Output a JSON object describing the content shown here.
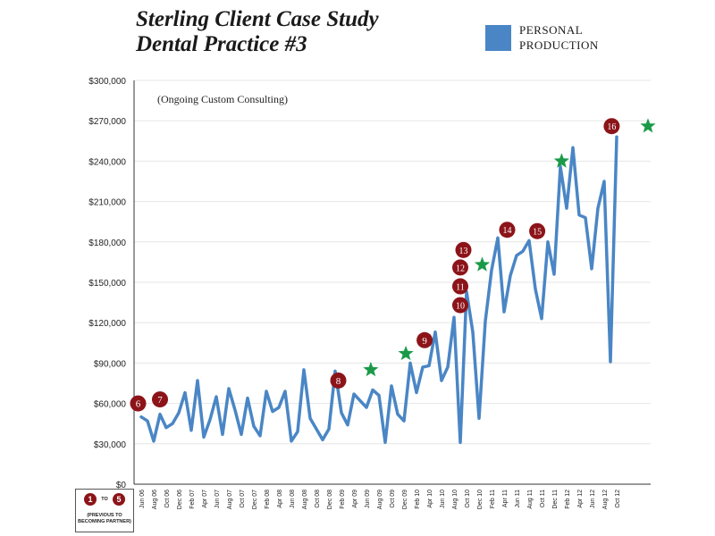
{
  "title_line1": "Sterling Client Case Study",
  "title_line2": "Dental Practice #3",
  "legend": {
    "label": "PERSONAL PRODUCTION",
    "color": "#4a86c5"
  },
  "annotation": "(Ongoing Custom Consulting)",
  "note": {
    "from": "1",
    "to_word": "TO",
    "to": "5",
    "caption_line1": "(PREVIOUS TO",
    "caption_line2": "BECOMING PARTNER)"
  },
  "colors": {
    "line": "#4a86c5",
    "badge": "#8c1419",
    "star": "#1a9a48",
    "axis": "#333333"
  },
  "chart_data": {
    "type": "line",
    "ylim": [
      0,
      300000
    ],
    "y_ticks": [
      "$0",
      "$30,000",
      "$60,000",
      "$90,000",
      "$120,000",
      "$150,000",
      "$180,000",
      "$210,000",
      "$240,000",
      "$270,000",
      "$300,000"
    ],
    "x_tick_labels": [
      "Jun 06",
      "Aug 06",
      "Oct 06",
      "Dec 06",
      "Feb 07",
      "Apr 07",
      "Jun 07",
      "Aug 07",
      "Oct 07",
      "Dec 07",
      "Feb 08",
      "Apr 08",
      "Jun 08",
      "Aug 08",
      "Oct 08",
      "Dec 08",
      "Feb 09",
      "Apr 09",
      "Jun 09",
      "Aug 09",
      "Oct 09",
      "Dec 09",
      "Feb 10",
      "Apr 10",
      "Jun 10",
      "Aug 10",
      "Oct 10",
      "Dec 10",
      "Feb 11",
      "Apr 11",
      "Jun 11",
      "Aug 11",
      "Oct 11",
      "Dec 11",
      "Feb 12",
      "Apr 12",
      "Jun 12",
      "Aug 12",
      "Oct 12"
    ],
    "series": [
      {
        "values": [
          50000,
          47000,
          32000,
          52000,
          42000,
          45000,
          53000,
          68000,
          40000,
          77000,
          35000,
          48000,
          65000,
          37000,
          71000,
          55000,
          37000,
          64000,
          43000,
          36000,
          69000,
          54000,
          57000,
          69000,
          32000,
          39000,
          85000,
          49000,
          41000,
          33000,
          41000,
          84000,
          53000,
          44000,
          67000,
          62000,
          57000,
          70000,
          66000,
          31000,
          73000,
          52000,
          47000,
          90000,
          68000,
          87000,
          88000,
          113000,
          77000,
          87000,
          124000,
          31000,
          143000,
          113000,
          49000,
          121000,
          159000,
          183000,
          128000,
          155000,
          170000,
          173000,
          181000,
          145000,
          123000,
          180000,
          156000,
          236000,
          205000,
          250000,
          200000,
          198000,
          160000,
          205000,
          225000,
          91000,
          258000
        ]
      }
    ],
    "badges": [
      {
        "label": "6",
        "x": -0.5,
        "y": 60000
      },
      {
        "label": "7",
        "x": 3,
        "y": 63000
      },
      {
        "label": "8",
        "x": 31.5,
        "y": 77000
      },
      {
        "label": "9",
        "x": 45.3,
        "y": 107000
      },
      {
        "label": "10",
        "x": 51,
        "y": 133000
      },
      {
        "label": "11",
        "x": 51,
        "y": 147000
      },
      {
        "label": "12",
        "x": 51,
        "y": 161000
      },
      {
        "label": "13",
        "x": 51.5,
        "y": 174000
      },
      {
        "label": "14",
        "x": 58.5,
        "y": 189000
      },
      {
        "label": "15",
        "x": 63.3,
        "y": 188000
      },
      {
        "label": "16",
        "x": 75.2,
        "y": 266000
      }
    ],
    "stars": [
      {
        "x": 36.7,
        "y": 85000
      },
      {
        "x": 42.3,
        "y": 97000
      },
      {
        "x": 54.5,
        "y": 163000
      },
      {
        "x": 67.2,
        "y": 240000
      },
      {
        "x": 81,
        "y": 266000
      }
    ]
  }
}
